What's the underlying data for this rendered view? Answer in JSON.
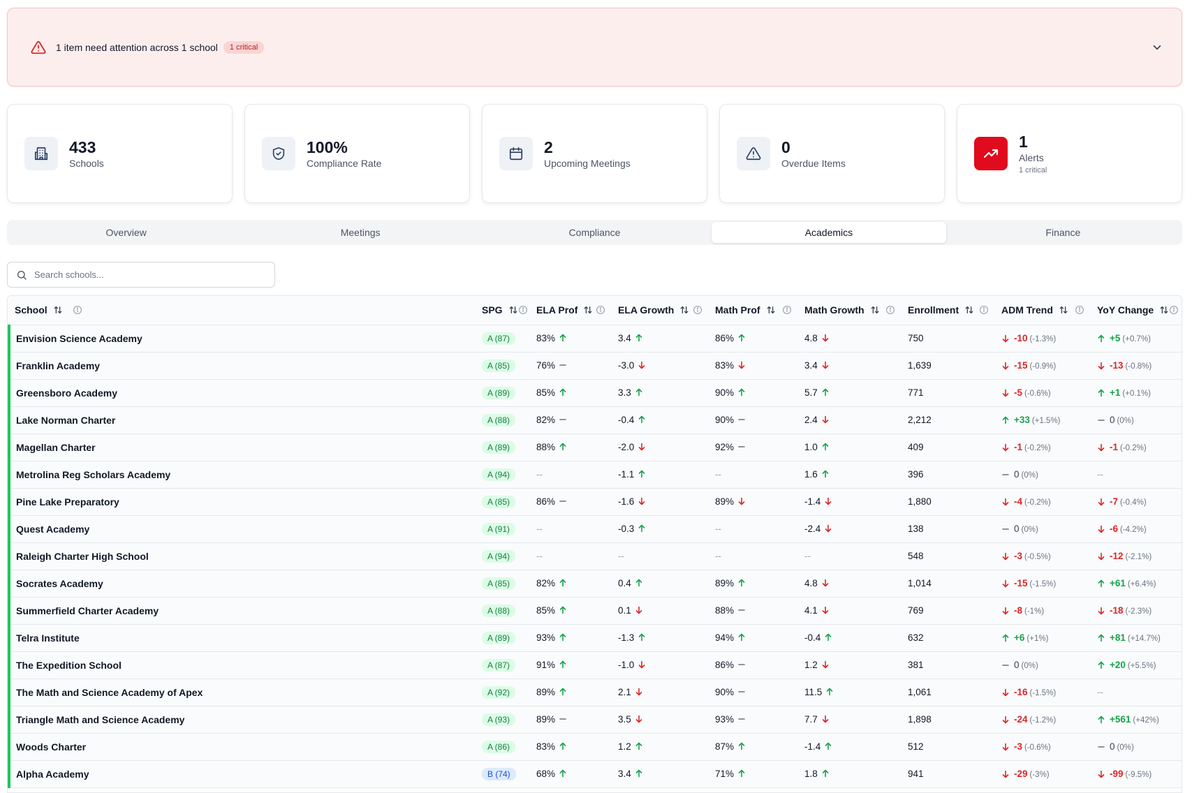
{
  "alert": {
    "message": "1 item need attention across 1 school",
    "badge": "1 critical"
  },
  "stats": [
    {
      "value": "433",
      "label": "Schools",
      "sub": "",
      "icon": "building-icon"
    },
    {
      "value": "100%",
      "label": "Compliance Rate",
      "sub": "",
      "icon": "shield-check-icon"
    },
    {
      "value": "2",
      "label": "Upcoming Meetings",
      "sub": "",
      "icon": "calendar-icon"
    },
    {
      "value": "0",
      "label": "Overdue Items",
      "sub": "",
      "icon": "warning-icon"
    },
    {
      "value": "1",
      "label": "Alerts",
      "sub": "1 critical",
      "icon": "trending-up-icon"
    }
  ],
  "tabs": [
    "Overview",
    "Meetings",
    "Compliance",
    "Academics",
    "Finance"
  ],
  "active_tab": "Academics",
  "search": {
    "placeholder": "Search schools..."
  },
  "colors": {
    "accent_green": "#22c55e",
    "alert_red": "#e00b1c",
    "up": "#16a34a",
    "down": "#dc2626"
  },
  "columns": [
    "School",
    "SPG",
    "ELA Prof",
    "ELA Growth",
    "Math Prof",
    "Math Growth",
    "Enrollment",
    "ADM Trend",
    "YoY Change"
  ],
  "rows": [
    {
      "school": "Envision Science Academy",
      "spg": "A (87)",
      "grade": "a",
      "ela_prof": "83%",
      "ela_prof_dir": "up",
      "ela_growth": "3.4",
      "ela_growth_dir": "up",
      "math_prof": "86%",
      "math_prof_dir": "up",
      "math_growth": "4.8",
      "math_growth_dir": "down",
      "enrollment": "750",
      "adm": "-10",
      "adm_pct": "(-1.3%)",
      "adm_dir": "down",
      "yoy": "+5",
      "yoy_pct": "(+0.7%)",
      "yoy_dir": "up"
    },
    {
      "school": "Franklin Academy",
      "spg": "A (85)",
      "grade": "a",
      "ela_prof": "76%",
      "ela_prof_dir": "flat",
      "ela_growth": "-3.0",
      "ela_growth_dir": "down",
      "math_prof": "83%",
      "math_prof_dir": "down",
      "math_growth": "3.4",
      "math_growth_dir": "down",
      "enrollment": "1,639",
      "adm": "-15",
      "adm_pct": "(-0.9%)",
      "adm_dir": "down",
      "yoy": "-13",
      "yoy_pct": "(-0.8%)",
      "yoy_dir": "down"
    },
    {
      "school": "Greensboro Academy",
      "spg": "A (89)",
      "grade": "a",
      "ela_prof": "85%",
      "ela_prof_dir": "up",
      "ela_growth": "3.3",
      "ela_growth_dir": "up",
      "math_prof": "90%",
      "math_prof_dir": "up",
      "math_growth": "5.7",
      "math_growth_dir": "up",
      "enrollment": "771",
      "adm": "-5",
      "adm_pct": "(-0.6%)",
      "adm_dir": "down",
      "yoy": "+1",
      "yoy_pct": "(+0.1%)",
      "yoy_dir": "up"
    },
    {
      "school": "Lake Norman Charter",
      "spg": "A (88)",
      "grade": "a",
      "ela_prof": "82%",
      "ela_prof_dir": "flat",
      "ela_growth": "-0.4",
      "ela_growth_dir": "up",
      "math_prof": "90%",
      "math_prof_dir": "flat",
      "math_growth": "2.4",
      "math_growth_dir": "down",
      "enrollment": "2,212",
      "adm": "+33",
      "adm_pct": "(+1.5%)",
      "adm_dir": "up",
      "yoy": "0",
      "yoy_pct": "(0%)",
      "yoy_dir": "flat"
    },
    {
      "school": "Magellan Charter",
      "spg": "A (89)",
      "grade": "a",
      "ela_prof": "88%",
      "ela_prof_dir": "up",
      "ela_growth": "-2.0",
      "ela_growth_dir": "down",
      "math_prof": "92%",
      "math_prof_dir": "flat",
      "math_growth": "1.0",
      "math_growth_dir": "up",
      "enrollment": "409",
      "adm": "-1",
      "adm_pct": "(-0.2%)",
      "adm_dir": "down",
      "yoy": "-1",
      "yoy_pct": "(-0.2%)",
      "yoy_dir": "down"
    },
    {
      "school": "Metrolina Reg Scholars Academy",
      "spg": "A (94)",
      "grade": "a",
      "ela_prof": "--",
      "ela_prof_dir": "none",
      "ela_growth": "-1.1",
      "ela_growth_dir": "up",
      "math_prof": "--",
      "math_prof_dir": "none",
      "math_growth": "1.6",
      "math_growth_dir": "up",
      "enrollment": "396",
      "adm": "0",
      "adm_pct": "(0%)",
      "adm_dir": "flat",
      "yoy": "--",
      "yoy_pct": "",
      "yoy_dir": "none"
    },
    {
      "school": "Pine Lake Preparatory",
      "spg": "A (85)",
      "grade": "a",
      "ela_prof": "86%",
      "ela_prof_dir": "flat",
      "ela_growth": "-1.6",
      "ela_growth_dir": "down",
      "math_prof": "89%",
      "math_prof_dir": "down",
      "math_growth": "-1.4",
      "math_growth_dir": "down",
      "enrollment": "1,880",
      "adm": "-4",
      "adm_pct": "(-0.2%)",
      "adm_dir": "down",
      "yoy": "-7",
      "yoy_pct": "(-0.4%)",
      "yoy_dir": "down"
    },
    {
      "school": "Quest Academy",
      "spg": "A (91)",
      "grade": "a",
      "ela_prof": "--",
      "ela_prof_dir": "none",
      "ela_growth": "-0.3",
      "ela_growth_dir": "up",
      "math_prof": "--",
      "math_prof_dir": "none",
      "math_growth": "-2.4",
      "math_growth_dir": "down",
      "enrollment": "138",
      "adm": "0",
      "adm_pct": "(0%)",
      "adm_dir": "flat",
      "yoy": "-6",
      "yoy_pct": "(-4.2%)",
      "yoy_dir": "down"
    },
    {
      "school": "Raleigh Charter High School",
      "spg": "A (94)",
      "grade": "a",
      "ela_prof": "--",
      "ela_prof_dir": "none",
      "ela_growth": "--",
      "ela_growth_dir": "none",
      "math_prof": "--",
      "math_prof_dir": "none",
      "math_growth": "--",
      "math_growth_dir": "none",
      "enrollment": "548",
      "adm": "-3",
      "adm_pct": "(-0.5%)",
      "adm_dir": "down",
      "yoy": "-12",
      "yoy_pct": "(-2.1%)",
      "yoy_dir": "down"
    },
    {
      "school": "Socrates Academy",
      "spg": "A (85)",
      "grade": "a",
      "ela_prof": "82%",
      "ela_prof_dir": "up",
      "ela_growth": "0.4",
      "ela_growth_dir": "up",
      "math_prof": "89%",
      "math_prof_dir": "up",
      "math_growth": "4.8",
      "math_growth_dir": "down",
      "enrollment": "1,014",
      "adm": "-15",
      "adm_pct": "(-1.5%)",
      "adm_dir": "down",
      "yoy": "+61",
      "yoy_pct": "(+6.4%)",
      "yoy_dir": "up"
    },
    {
      "school": "Summerfield Charter Academy",
      "spg": "A (88)",
      "grade": "a",
      "ela_prof": "85%",
      "ela_prof_dir": "up",
      "ela_growth": "0.1",
      "ela_growth_dir": "down",
      "math_prof": "88%",
      "math_prof_dir": "flat",
      "math_growth": "4.1",
      "math_growth_dir": "down",
      "enrollment": "769",
      "adm": "-8",
      "adm_pct": "(-1%)",
      "adm_dir": "down",
      "yoy": "-18",
      "yoy_pct": "(-2.3%)",
      "yoy_dir": "down"
    },
    {
      "school": "Telra Institute",
      "spg": "A (89)",
      "grade": "a",
      "ela_prof": "93%",
      "ela_prof_dir": "up",
      "ela_growth": "-1.3",
      "ela_growth_dir": "up",
      "math_prof": "94%",
      "math_prof_dir": "up",
      "math_growth": "-0.4",
      "math_growth_dir": "up",
      "enrollment": "632",
      "adm": "+6",
      "adm_pct": "(+1%)",
      "adm_dir": "up",
      "yoy": "+81",
      "yoy_pct": "(+14.7%)",
      "yoy_dir": "up"
    },
    {
      "school": "The Expedition School",
      "spg": "A (87)",
      "grade": "a",
      "ela_prof": "91%",
      "ela_prof_dir": "up",
      "ela_growth": "-1.0",
      "ela_growth_dir": "down",
      "math_prof": "86%",
      "math_prof_dir": "flat",
      "math_growth": "1.2",
      "math_growth_dir": "down",
      "enrollment": "381",
      "adm": "0",
      "adm_pct": "(0%)",
      "adm_dir": "flat",
      "yoy": "+20",
      "yoy_pct": "(+5.5%)",
      "yoy_dir": "up"
    },
    {
      "school": "The Math and Science Academy of Apex",
      "spg": "A (92)",
      "grade": "a",
      "ela_prof": "89%",
      "ela_prof_dir": "up",
      "ela_growth": "2.1",
      "ela_growth_dir": "down",
      "math_prof": "90%",
      "math_prof_dir": "flat",
      "math_growth": "11.5",
      "math_growth_dir": "up",
      "enrollment": "1,061",
      "adm": "-16",
      "adm_pct": "(-1.5%)",
      "adm_dir": "down",
      "yoy": "--",
      "yoy_pct": "",
      "yoy_dir": "none"
    },
    {
      "school": "Triangle Math and Science Academy",
      "spg": "A (93)",
      "grade": "a",
      "ela_prof": "89%",
      "ela_prof_dir": "flat",
      "ela_growth": "3.5",
      "ela_growth_dir": "down",
      "math_prof": "93%",
      "math_prof_dir": "flat",
      "math_growth": "7.7",
      "math_growth_dir": "down",
      "enrollment": "1,898",
      "adm": "-24",
      "adm_pct": "(-1.2%)",
      "adm_dir": "down",
      "yoy": "+561",
      "yoy_pct": "(+42%)",
      "yoy_dir": "up"
    },
    {
      "school": "Woods Charter",
      "spg": "A (86)",
      "grade": "a",
      "ela_prof": "83%",
      "ela_prof_dir": "up",
      "ela_growth": "1.2",
      "ela_growth_dir": "up",
      "math_prof": "87%",
      "math_prof_dir": "up",
      "math_growth": "-1.4",
      "math_growth_dir": "up",
      "enrollment": "512",
      "adm": "-3",
      "adm_pct": "(-0.6%)",
      "adm_dir": "down",
      "yoy": "0",
      "yoy_pct": "(0%)",
      "yoy_dir": "flat"
    },
    {
      "school": "Alpha Academy",
      "spg": "B (74)",
      "grade": "b",
      "ela_prof": "68%",
      "ela_prof_dir": "up",
      "ela_growth": "3.4",
      "ela_growth_dir": "up",
      "math_prof": "71%",
      "math_prof_dir": "up",
      "math_growth": "1.8",
      "math_growth_dir": "up",
      "enrollment": "941",
      "adm": "-29",
      "adm_pct": "(-3%)",
      "adm_dir": "down",
      "yoy": "-99",
      "yoy_pct": "(-9.5%)",
      "yoy_dir": "down"
    }
  ]
}
